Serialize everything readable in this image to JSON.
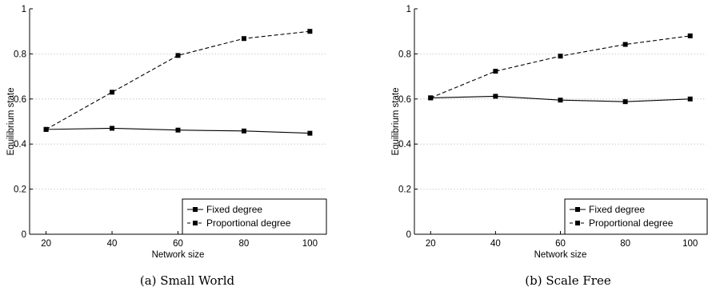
{
  "chart_data": [
    {
      "type": "line",
      "caption": "(a) Small World",
      "xlabel": "Network size",
      "ylabel": "Equilibrium state",
      "x": [
        20,
        40,
        60,
        80,
        100
      ],
      "xlim": [
        15,
        105
      ],
      "ylim": [
        0,
        1
      ],
      "xticks": [
        20,
        40,
        60,
        80,
        100
      ],
      "yticks": [
        0,
        0.2,
        0.4,
        0.6,
        0.8,
        1
      ],
      "ytick_labels": [
        "0",
        "0.2",
        "0.4",
        "0.6",
        "0.8",
        "1"
      ],
      "grid": true,
      "legend_position": "bottom-right",
      "series": [
        {
          "name": "Fixed degree",
          "style": "solid",
          "color": "#000000",
          "values": [
            0.465,
            0.47,
            0.462,
            0.458,
            0.448
          ]
        },
        {
          "name": "Proportional degree",
          "style": "dashed",
          "color": "#000000",
          "values": [
            0.465,
            0.63,
            0.793,
            0.868,
            0.9
          ]
        }
      ]
    },
    {
      "type": "line",
      "caption": "(b) Scale Free",
      "xlabel": "Network size",
      "ylabel": "Equilibrium state",
      "x": [
        20,
        40,
        60,
        80,
        100
      ],
      "xlim": [
        15,
        105
      ],
      "ylim": [
        0,
        1
      ],
      "xticks": [
        20,
        40,
        60,
        80,
        100
      ],
      "yticks": [
        0,
        0.2,
        0.4,
        0.6,
        0.8,
        1
      ],
      "ytick_labels": [
        "0",
        "0.2",
        "0.4",
        "0.6",
        "0.8",
        "1"
      ],
      "grid": true,
      "legend_position": "bottom-right",
      "series": [
        {
          "name": "Fixed degree",
          "style": "solid",
          "color": "#000000",
          "values": [
            0.605,
            0.612,
            0.595,
            0.588,
            0.6
          ]
        },
        {
          "name": "Proportional degree",
          "style": "dashed",
          "color": "#000000",
          "values": [
            0.605,
            0.723,
            0.79,
            0.842,
            0.88
          ]
        }
      ]
    }
  ]
}
